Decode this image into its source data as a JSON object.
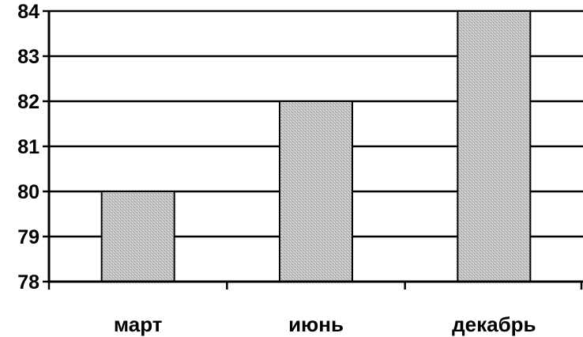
{
  "chart_data": {
    "type": "bar",
    "categories": [
      "март",
      "июнь",
      "декабрь"
    ],
    "values": [
      80,
      82,
      84
    ],
    "ylim": [
      78,
      84
    ],
    "yticks": [
      78,
      79,
      80,
      81,
      82,
      83,
      84
    ],
    "grid": true,
    "bar_fill": "#bdbdbd",
    "axis_color": "#000000"
  }
}
